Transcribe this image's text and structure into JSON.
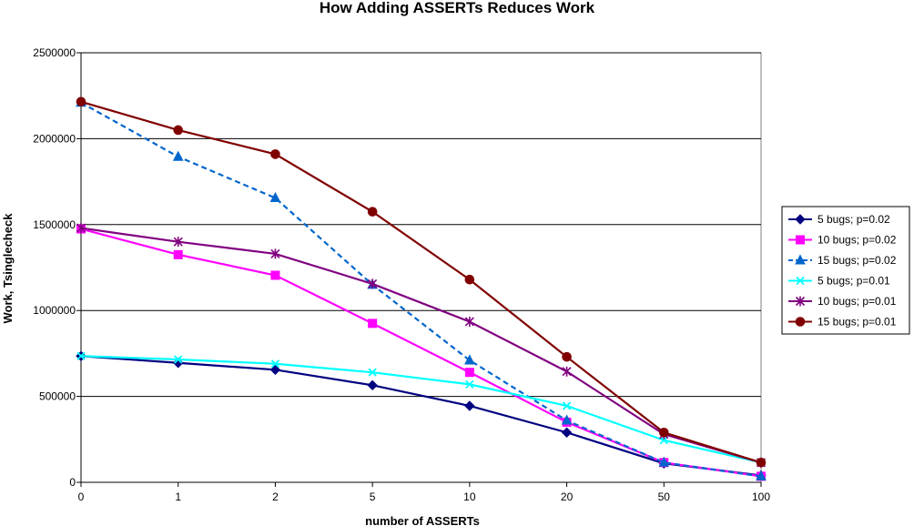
{
  "chart_data": {
    "type": "line",
    "title": "How Adding ASSERTs Reduces Work",
    "xlabel": "number of ASSERTs",
    "ylabel": "Work, Tsinglecheck",
    "categories": [
      "0",
      "1",
      "2",
      "5",
      "10",
      "20",
      "50",
      "100"
    ],
    "ylim": [
      0,
      2500000
    ],
    "yticks": [
      "0",
      "500000",
      "1000000",
      "1500000",
      "2000000",
      "2500000"
    ],
    "grid": "horizontal",
    "legend_position": "right",
    "series": [
      {
        "name": "5 bugs; p=0.02",
        "color": "#000080",
        "marker": "diamond",
        "dash": false,
        "values": [
          735000,
          695000,
          655000,
          565000,
          445000,
          290000,
          110000,
          40000
        ]
      },
      {
        "name": "10 bugs; p=0.02",
        "color": "#FF00FF",
        "marker": "square",
        "dash": false,
        "values": [
          1475000,
          1325000,
          1205000,
          925000,
          640000,
          350000,
          115000,
          35000
        ]
      },
      {
        "name": "15 bugs; p=0.02",
        "color": "#0066CC",
        "marker": "triangle",
        "dash": true,
        "values": [
          2210000,
          1895000,
          1655000,
          1150000,
          710000,
          360000,
          115000,
          35000
        ]
      },
      {
        "name": "5 bugs; p=0.01",
        "color": "#00FFFF",
        "marker": "x",
        "dash": false,
        "values": [
          735000,
          715000,
          690000,
          640000,
          570000,
          445000,
          245000,
          115000
        ]
      },
      {
        "name": "10 bugs; p=0.01",
        "color": "#800080",
        "marker": "star",
        "dash": false,
        "values": [
          1480000,
          1400000,
          1330000,
          1155000,
          935000,
          645000,
          280000,
          115000
        ]
      },
      {
        "name": "15 bugs; p=0.01",
        "color": "#800000",
        "marker": "circle",
        "dash": false,
        "values": [
          2215000,
          2050000,
          1910000,
          1575000,
          1180000,
          730000,
          290000,
          115000
        ]
      }
    ]
  }
}
